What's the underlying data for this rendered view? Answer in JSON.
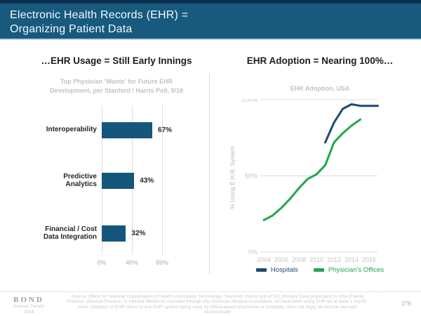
{
  "header": {
    "title_line1": "Electronic Health Records (EHR) =",
    "title_line2": "Organizing Patient Data"
  },
  "left_chart": {
    "title": "…EHR Usage = Still Early Innings",
    "subtitle_line1": "Top Physician 'Wants' for Future EHR",
    "subtitle_line2": "Development, per Stanford / Harris Poll, 9/18"
  },
  "right_chart": {
    "title": "EHR Adoption = Nearing 100%…",
    "subtitle": "EHR Adoption, USA",
    "ylabel": "% Using E.H.R. System"
  },
  "chart_data": [
    {
      "type": "bar",
      "orientation": "horizontal",
      "title": "…EHR Usage = Still Early Innings",
      "subtitle": "Top Physician 'Wants' for Future EHR Development, per Stanford / Harris Poll, 9/18",
      "categories": [
        "Interoperability",
        "Predictive\nAnalytics",
        "Financial / Cost\nData Integration"
      ],
      "values": [
        67,
        43,
        32
      ],
      "value_labels": [
        "67%",
        "43%",
        "32%"
      ],
      "x_ticks": [
        {
          "value": 0,
          "label": "0%"
        },
        {
          "value": 40,
          "label": "40%"
        },
        {
          "value": 80,
          "label": "80%"
        }
      ],
      "xlim": [
        0,
        145
      ],
      "bar_color": "#15567D",
      "grid": "vertical"
    },
    {
      "type": "line",
      "title": "EHR Adoption = Nearing 100%…",
      "subtitle": "EHR Adoption, USA",
      "ylabel": "% Using E.H.R. System",
      "ylim": [
        0,
        100
      ],
      "xlim": [
        2003.6,
        2017.4
      ],
      "y_ticks": [
        {
          "value": 100,
          "label": "100%"
        },
        {
          "value": 50,
          "label": "50%"
        },
        {
          "value": 0,
          "label": "0%"
        }
      ],
      "x_ticks": [
        {
          "value": 2004,
          "label": "2004"
        },
        {
          "value": 2006,
          "label": "2006"
        },
        {
          "value": 2008,
          "label": "2008"
        },
        {
          "value": 2010,
          "label": "2010"
        },
        {
          "value": 2012,
          "label": "2012"
        },
        {
          "value": 2014,
          "label": "2014"
        },
        {
          "value": 2016,
          "label": "2016"
        }
      ],
      "legend_position": "bottom",
      "grid": "horizontal",
      "series": [
        {
          "name": "Hospitals",
          "color": "#1B4A73",
          "x": [
            2011,
            2012,
            2013,
            2014,
            2015,
            2016,
            2017
          ],
          "values": [
            72,
            85,
            94,
            97,
            96,
            96,
            96
          ]
        },
        {
          "name": "Physician's Offices",
          "color": "#21A64E",
          "x": [
            2004,
            2005,
            2006,
            2007,
            2008,
            2009,
            2010,
            2011,
            2012,
            2013,
            2014,
            2015
          ],
          "values": [
            21,
            24,
            29,
            35,
            42,
            48,
            51,
            57,
            72,
            78,
            83,
            87
          ]
        }
      ]
    }
  ],
  "footer": {
    "logo": "BOND",
    "logo_sub1": "Internet Trends",
    "logo_sub2": "2019",
    "source_line1": "Source: Office for National Coordination of Health Information Technology; Stanford / Harris poll of 521 Primary Care physicians in USA (Family",
    "source_line2": "Practice, General Practice, or Internal Medicine) recruited through the American Medical Association.  All have been using EHR for at least 1 month.",
    "source_line3": "Note: Adoption of EHR refers to any EHR system being used by Office-based physicians or hospitals, does not imply all records are kept electronically",
    "page_number": "276"
  },
  "colors": {
    "header_bg": "#175A7E",
    "header_top_strip": "#0E3050",
    "bar_navy": "#15567D",
    "line_navy": "#1B4A73",
    "line_green": "#21A64E",
    "gridline": "#DCDCDC",
    "muted_gray_text": "#C2C2C2"
  }
}
